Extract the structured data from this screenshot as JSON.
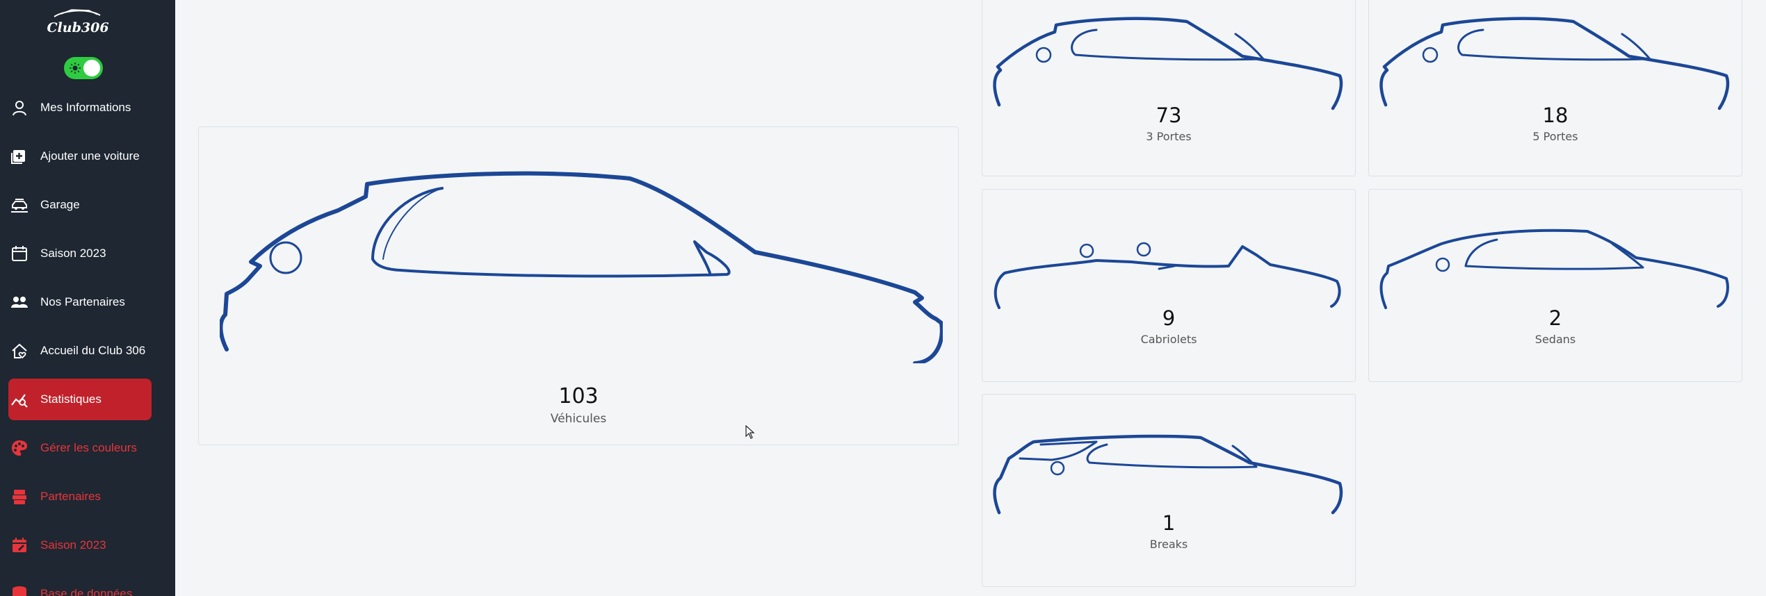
{
  "app": {
    "logo_text": "Club306",
    "theme_toggle": {
      "state": "on",
      "icon": "sun-icon"
    },
    "accent_color": "#c0212a",
    "sidebar_bg": "#1e2732",
    "car_line_color": "#1c4796"
  },
  "sidebar": {
    "items": [
      {
        "label": "Mes Informations",
        "icon": "user-icon",
        "kind": "user"
      },
      {
        "label": "Ajouter une voiture",
        "icon": "add-square-icon",
        "kind": "user"
      },
      {
        "label": "Garage",
        "icon": "car-lift-icon",
        "kind": "user"
      },
      {
        "label": "Saison 2023",
        "icon": "calendar-icon",
        "kind": "user"
      },
      {
        "label": "Nos Partenaires",
        "icon": "users-icon",
        "kind": "user"
      },
      {
        "label": "Accueil du Club 306",
        "icon": "home-heart-icon",
        "kind": "user"
      },
      {
        "label": "Statistiques",
        "icon": "chart-search-icon",
        "kind": "active"
      },
      {
        "label": "Gérer les couleurs",
        "icon": "palette-icon",
        "kind": "admin"
      },
      {
        "label": "Partenaires",
        "icon": "money-stack-icon",
        "kind": "admin"
      },
      {
        "label": "Saison 2023",
        "icon": "calendar-edit-icon",
        "kind": "admin"
      },
      {
        "label": "Base de données",
        "icon": "database-icon",
        "kind": "admin"
      }
    ]
  },
  "stats": {
    "total": {
      "count": "103",
      "label": "Véhicules"
    },
    "cards": [
      {
        "count": "73",
        "label": "3 Portes",
        "shape": "3-door"
      },
      {
        "count": "18",
        "label": "5 Portes",
        "shape": "5-door"
      },
      {
        "count": "9",
        "label": "Cabriolets",
        "shape": "cabriolet"
      },
      {
        "count": "2",
        "label": "Sedans",
        "shape": "sedan"
      },
      {
        "count": "1",
        "label": "Breaks",
        "shape": "break"
      }
    ]
  }
}
